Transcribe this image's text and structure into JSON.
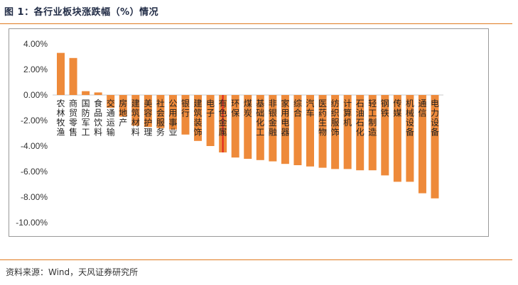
{
  "figure": {
    "title": "图 1：各行业板块涨跌幅（%）情况",
    "source": "资料来源：Wind，天风证券研究所"
  },
  "colors": {
    "bar": "#ee8a3a",
    "highlight_bar": "#e02020",
    "rule": "#e07a1f",
    "frame": "#9a9a9a"
  },
  "chart_data": {
    "type": "bar",
    "title": "",
    "xlabel": "",
    "ylabel": "",
    "ylim": [
      -10,
      4
    ],
    "yticks": [
      "4.00%",
      "2.00%",
      "0.00%",
      "-2.00%",
      "-4.00%",
      "-6.00%",
      "-8.00%",
      "-10.00%"
    ],
    "highlight_index": 13,
    "categories": [
      "农林牧渔",
      "商贸零售",
      "国防军工",
      "食品饮料",
      "交通运输",
      "房地产",
      "建筑材料",
      "美容护理",
      "社会服务",
      "公用事业",
      "银行",
      "建筑装饰",
      "电子",
      "有色金属",
      "环保",
      "煤炭",
      "基础化工",
      "非银金融",
      "家用电器",
      "综合",
      "汽车",
      "医药生物",
      "纺织服饰",
      "计算机",
      "石油石化",
      "轻工制造",
      "钢铁",
      "传媒",
      "机械设备",
      "通信",
      "电力设备"
    ],
    "values": [
      3.3,
      2.9,
      0.3,
      0.2,
      -1.0,
      -1.7,
      -2.4,
      -2.5,
      -2.6,
      -2.7,
      -3.1,
      -3.6,
      -4.0,
      -4.5,
      -4.9,
      -5.0,
      -5.1,
      -5.2,
      -5.4,
      -5.5,
      -5.6,
      -5.7,
      -5.8,
      -5.8,
      -5.9,
      -5.9,
      -6.3,
      -6.8,
      -6.8,
      -7.7,
      -8.1
    ]
  }
}
